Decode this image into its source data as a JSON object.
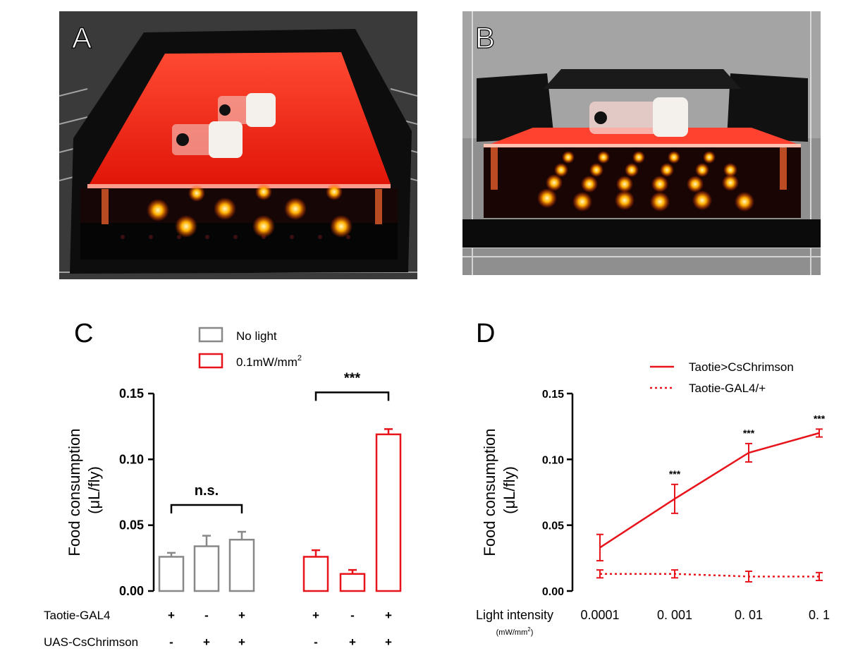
{
  "panels": {
    "a": "A",
    "b": "B",
    "c": "C",
    "d": "D"
  },
  "chart_data": [
    {
      "type": "bar",
      "panel": "C",
      "ylabel_line1": "Food consumption",
      "ylabel_line2": "(μL/fly)",
      "ylim": [
        0,
        0.15
      ],
      "yticks": [
        "0.00",
        "0.05",
        "0.10",
        "0.15"
      ],
      "legend": {
        "placement": "top",
        "items": [
          {
            "label": "No light",
            "color": "#888888"
          },
          {
            "label": "0.1mW/mm",
            "sup": "2",
            "color": "#e8141b"
          }
        ]
      },
      "series": [
        {
          "name": "No light",
          "color": "#888888",
          "values": [
            0.026,
            0.034,
            0.039
          ],
          "errors": [
            0.003,
            0.008,
            0.006
          ]
        },
        {
          "name": "0.1mW/mm2",
          "color": "#e8141b",
          "values": [
            0.026,
            0.013,
            0.119
          ],
          "errors": [
            0.005,
            0.003,
            0.004
          ]
        }
      ],
      "significance": [
        {
          "label": "n.s.",
          "group": 0
        },
        {
          "label": "***",
          "group": 1
        }
      ],
      "genotype_rows": [
        {
          "label": "Taotie-GAL4",
          "values": [
            "+",
            "-",
            "+",
            "+",
            "-",
            "+"
          ]
        },
        {
          "label": "UAS-CsChrimson",
          "values": [
            "-",
            "+",
            "+",
            "-",
            "+",
            "+"
          ]
        }
      ]
    },
    {
      "type": "line",
      "panel": "D",
      "ylabel_line1": "Food consumption",
      "ylabel_line2": "(μL/fly)",
      "xlabel_line1": "Light intensity",
      "xlabel_line2": "(mW/mm",
      "xlabel_sup": "2",
      "xlabel_close": ")",
      "x_scale": "log",
      "x": [
        "0.0001",
        "0. 001",
        "0. 01",
        "0. 1"
      ],
      "ylim": [
        0,
        0.15
      ],
      "yticks": [
        "0.00",
        "0.05",
        "0.10",
        "0.15"
      ],
      "color": "#e8141b",
      "legend": {
        "placement": "top-right"
      },
      "series": [
        {
          "name": "Taotie>CsChrimson",
          "style": "solid",
          "values": [
            0.033,
            0.07,
            0.105,
            0.12
          ],
          "errors": [
            0.01,
            0.011,
            0.007,
            0.003
          ]
        },
        {
          "name": "Taotie-GAL4/+",
          "style": "dotted",
          "values": [
            0.013,
            0.013,
            0.011,
            0.011
          ],
          "errors": [
            0.003,
            0.003,
            0.004,
            0.003
          ]
        }
      ],
      "annotations": [
        "",
        "***",
        "***",
        "***"
      ]
    }
  ]
}
